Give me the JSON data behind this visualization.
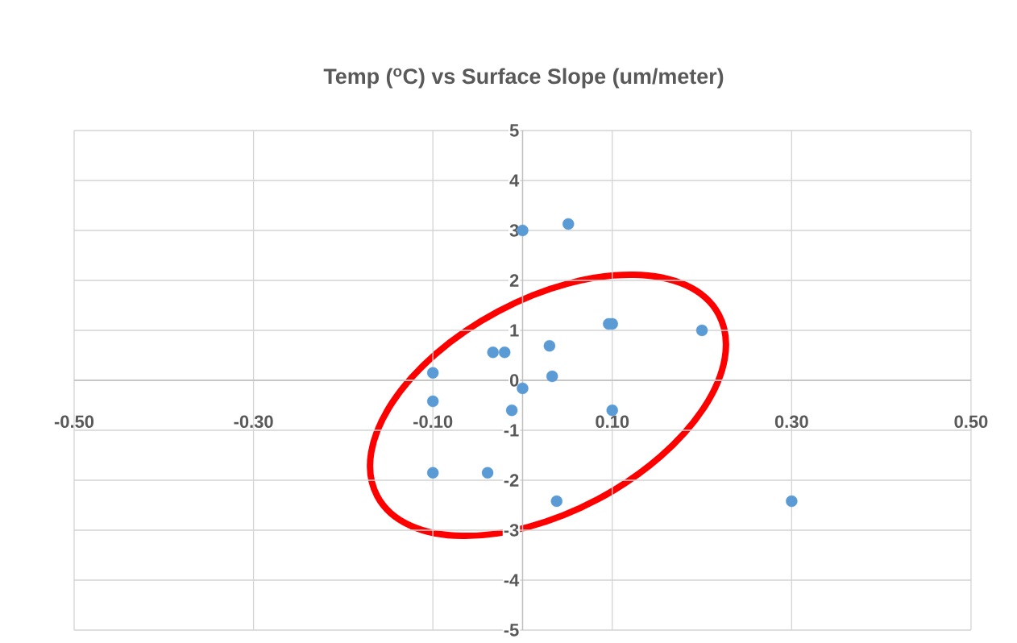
{
  "chart_data": {
    "type": "scatter",
    "title": "Temp ($^{o}$C) vs Surface Slope (um/meter)",
    "x": [
      0,
      0.051,
      0.096,
      0.1,
      0.2,
      0.03,
      -0.033,
      -0.02,
      -0.1,
      0.033,
      0,
      -0.1,
      -0.012,
      0.1,
      -0.1,
      -0.039,
      0.038,
      0.3
    ],
    "series": [
      {
        "color": "#5b9bd5",
        "values": [
          3.0,
          3.13,
          1.13,
          1.13,
          1.0,
          0.69,
          0.56,
          0.56,
          0.15,
          0.08,
          -0.16,
          -0.42,
          -0.6,
          -0.6,
          -1.85,
          -1.85,
          -2.42,
          -2.42
        ]
      }
    ],
    "xlim": [
      -0.5,
      0.5
    ],
    "ylim": [
      -5,
      5
    ],
    "xticks": [
      {
        "value": -0.5,
        "label": "-0.50"
      },
      {
        "value": -0.3,
        "label": "-0.30"
      },
      {
        "value": -0.1,
        "label": "-0.10"
      },
      {
        "value": 0.1,
        "label": "0.10"
      },
      {
        "value": 0.3,
        "label": "0.30"
      },
      {
        "value": 0.5,
        "label": "0.50"
      }
    ],
    "yticks": [
      -5,
      -4,
      -3,
      -2,
      -1,
      0,
      1,
      2,
      3,
      4,
      5
    ],
    "grid": true,
    "marker": "circle"
  }
}
